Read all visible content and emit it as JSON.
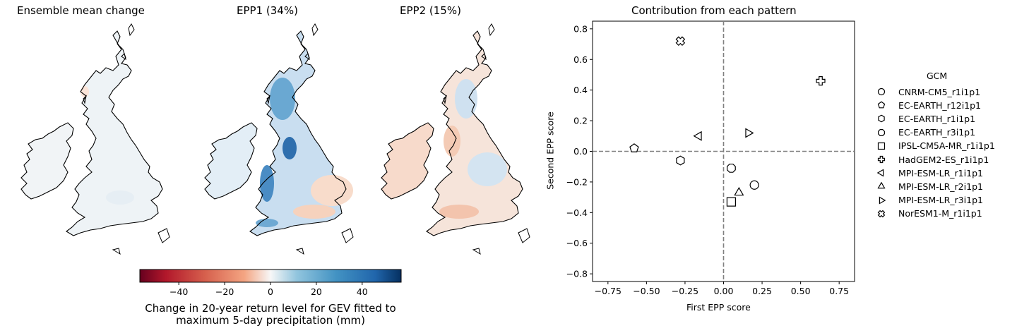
{
  "maps": {
    "titles": [
      "Ensemble mean change",
      "EPP1 (34%)",
      "EPP2 (15%)"
    ],
    "colorbar": {
      "colormap": "RdBu",
      "range": [
        -57,
        57
      ],
      "ticks": [
        -40,
        -20,
        0,
        20,
        40
      ],
      "tick_labels": [
        "−40",
        "−20",
        "0",
        "20",
        "40"
      ],
      "label_line1": "Change in 20-year return level for GEV fitted to",
      "label_line2": "maximum 5-day precipitation (mm)"
    }
  },
  "chart_data": {
    "type": "scatter",
    "title": "Contribution from each pattern",
    "xlabel": "First EPP score",
    "ylabel": "Second EPP score",
    "xlim": [
      -0.85,
      0.85
    ],
    "ylim": [
      -0.85,
      0.85
    ],
    "xticks": [
      -0.75,
      -0.5,
      -0.25,
      0.0,
      0.25,
      0.5,
      0.75
    ],
    "xtick_labels": [
      "−0.75",
      "−0.50",
      "−0.25",
      "0.00",
      "0.25",
      "0.50",
      "0.75"
    ],
    "yticks": [
      -0.8,
      -0.6,
      -0.4,
      -0.2,
      0.0,
      0.2,
      0.4,
      0.6,
      0.8
    ],
    "ytick_labels": [
      "−0.8",
      "−0.6",
      "−0.4",
      "−0.2",
      "0.0",
      "0.2",
      "0.4",
      "0.6",
      "0.8"
    ],
    "reference_lines": {
      "x": 0,
      "y": 0,
      "style": "dashed",
      "color": "#808080"
    },
    "legend": {
      "title": "GCM",
      "position": "right"
    },
    "series": [
      {
        "name": "CNRM-CM5_r1i1p1",
        "marker": "circle",
        "x": 0.2,
        "y": -0.22
      },
      {
        "name": "EC-EARTH_r12i1p1",
        "marker": "pentagon",
        "x": -0.58,
        "y": 0.02
      },
      {
        "name": "EC-EARTH_r1i1p1",
        "marker": "hexagon",
        "x": -0.28,
        "y": -0.06
      },
      {
        "name": "EC-EARTH_r3i1p1",
        "marker": "octagon",
        "x": 0.05,
        "y": -0.11
      },
      {
        "name": "IPSL-CM5A-MR_r1i1p1",
        "marker": "square",
        "x": 0.05,
        "y": -0.33
      },
      {
        "name": "HadGEM2-ES_r1i1p1",
        "marker": "plus",
        "x": 0.63,
        "y": 0.46
      },
      {
        "name": "MPI-ESM-LR_r1i1p1",
        "marker": "triangle-left",
        "x": -0.16,
        "y": 0.1
      },
      {
        "name": "MPI-ESM-LR_r2i1p1",
        "marker": "triangle-up",
        "x": 0.1,
        "y": -0.27
      },
      {
        "name": "MPI-ESM-LR_r3i1p1",
        "marker": "triangle-right",
        "x": 0.16,
        "y": 0.12
      },
      {
        "name": "NorESM1-M_r1i1p1",
        "marker": "x-filled",
        "x": -0.28,
        "y": 0.72
      }
    ]
  }
}
